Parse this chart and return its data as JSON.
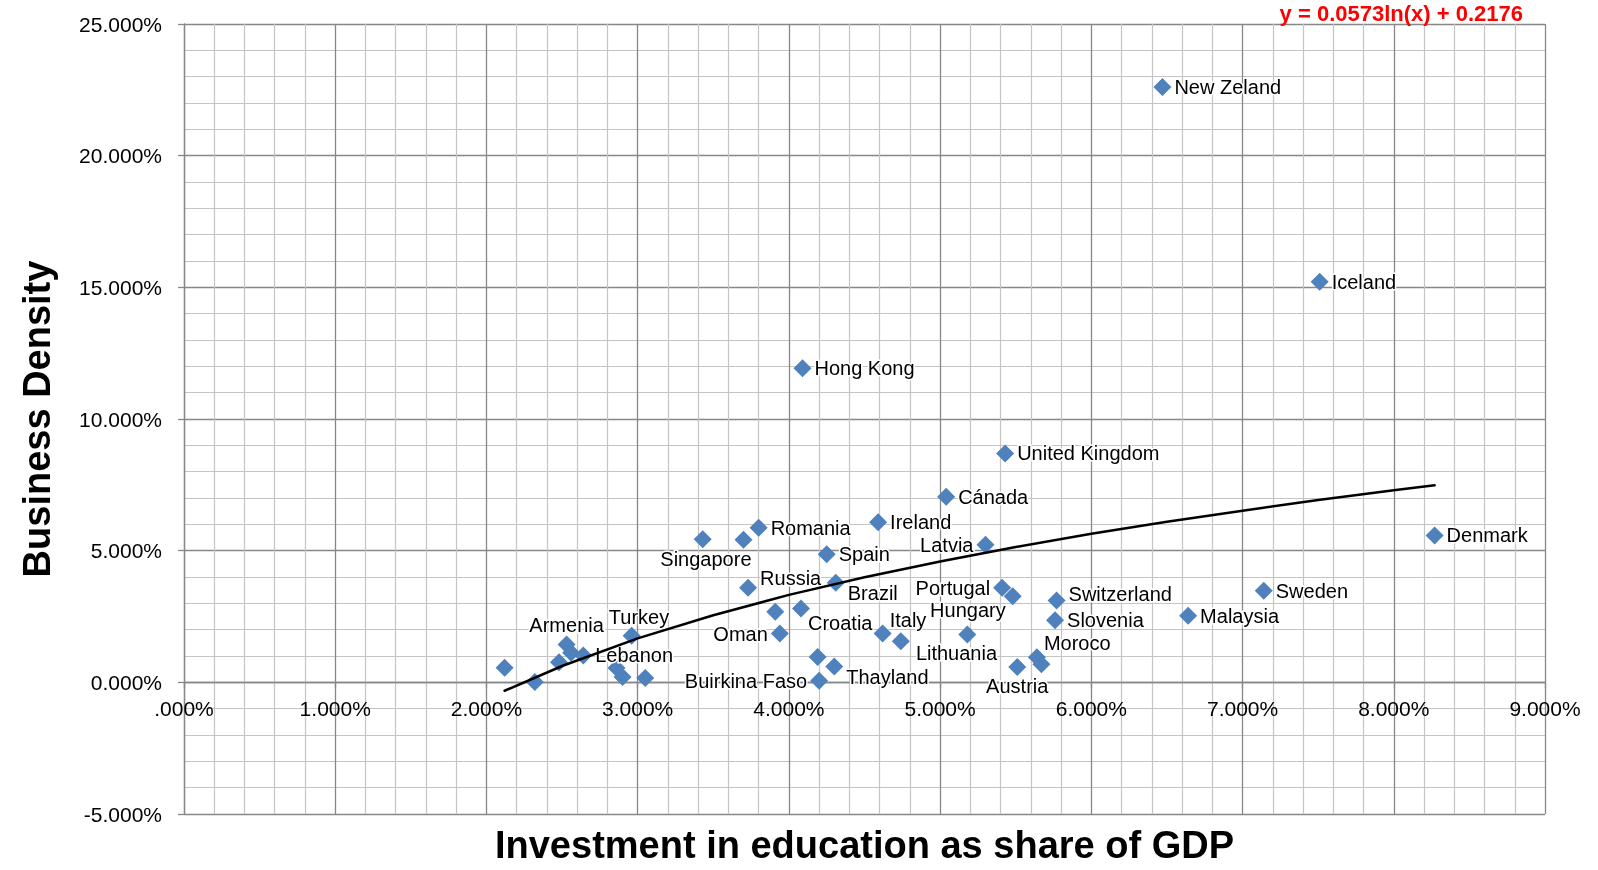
{
  "chart_data": {
    "type": "scatter",
    "xlabel": "Investment in education as share of GDP",
    "ylabel": "Business Density",
    "annotations": [
      "y = 0.0573ln(x) + 0.2176"
    ],
    "xlim": [
      0,
      9
    ],
    "xticks": [
      {
        "value": 0,
        "label": ".000%"
      },
      {
        "value": 1,
        "label": "1.000%"
      },
      {
        "value": 2,
        "label": "2.000%"
      },
      {
        "value": 3,
        "label": "3.000%"
      },
      {
        "value": 4,
        "label": "4.000%"
      },
      {
        "value": 5,
        "label": "5.000%"
      },
      {
        "value": 6,
        "label": "6.000%"
      },
      {
        "value": 7,
        "label": "7.000%"
      },
      {
        "value": 8,
        "label": "8.000%"
      },
      {
        "value": 9,
        "label": "9.000%"
      }
    ],
    "ylim": [
      -5,
      25
    ],
    "yticks": [
      {
        "value": -5,
        "label": "-5.000%"
      },
      {
        "value": 0,
        "label": "0.000%"
      },
      {
        "value": 5,
        "label": "5.000%"
      },
      {
        "value": 10,
        "label": "10.000%"
      },
      {
        "value": 15,
        "label": "15.000%"
      },
      {
        "value": 20,
        "label": "20.000%"
      },
      {
        "value": 25,
        "label": "25.000%"
      }
    ],
    "grid": true,
    "marker": "diamond",
    "series": [
      {
        "color": "#4f81bd",
        "x": [
          2.12,
          2.32,
          2.48,
          2.53,
          2.56,
          2.64,
          2.86,
          2.9,
          2.96,
          3.05,
          3.43,
          3.7,
          3.73,
          3.8,
          3.91,
          3.94,
          4.08,
          4.09,
          4.19,
          4.2,
          4.25,
          4.3,
          4.31,
          4.59,
          4.62,
          4.74,
          5.04,
          5.18,
          5.3,
          5.41,
          5.43,
          5.48,
          5.51,
          5.64,
          5.67,
          5.76,
          5.77,
          6.47,
          6.64,
          7.14,
          7.51,
          8.27
        ],
        "values": [
          0.55,
          0.01,
          0.76,
          1.44,
          1.12,
          1.02,
          0.54,
          0.2,
          1.77,
          0.16,
          5.43,
          5.41,
          3.59,
          5.87,
          2.68,
          1.85,
          2.8,
          11.93,
          0.96,
          0.06,
          4.86,
          0.6,
          3.78,
          6.08,
          1.85,
          1.56,
          7.05,
          1.82,
          5.22,
          3.59,
          8.69,
          3.27,
          0.58,
          0.95,
          0.69,
          2.36,
          3.11,
          22.61,
          2.53,
          3.48,
          15.21,
          5.58
        ],
        "value_labels": [
          null,
          null,
          null,
          "Armenia",
          null,
          "Lebanon",
          null,
          null,
          "Turkey",
          null,
          null,
          "Singapore",
          "Russia",
          "Romania",
          null,
          "Oman",
          "Croatia",
          "Hong Kong",
          null,
          "Buirkina Faso",
          "Spain",
          "Thayland",
          "Brazil",
          "Ireland",
          "Italy",
          null,
          "Cánada",
          "Lithuania",
          "Latvia",
          "Portugal",
          "United Kingdom",
          "Hungary",
          "Austria",
          "Moroco",
          null,
          "Slovenia",
          "Switzerland",
          "New Zeland",
          "Malaysia",
          "Sweden",
          "Iceland",
          "Denmark"
        ]
      },
      {
        "type": "line",
        "color": "#000000",
        "marker": "none",
        "line_style": "solid",
        "x": [
          2.12,
          2.5,
          3,
          3.5,
          4,
          4.5,
          5,
          5.5,
          6,
          6.5,
          7,
          7.5,
          8,
          8.27
        ],
        "values": [
          -0.32,
          0.62,
          1.67,
          2.55,
          3.32,
          3.99,
          4.59,
          5.14,
          5.64,
          6.1,
          6.52,
          6.92,
          7.29,
          7.48
        ]
      }
    ]
  }
}
